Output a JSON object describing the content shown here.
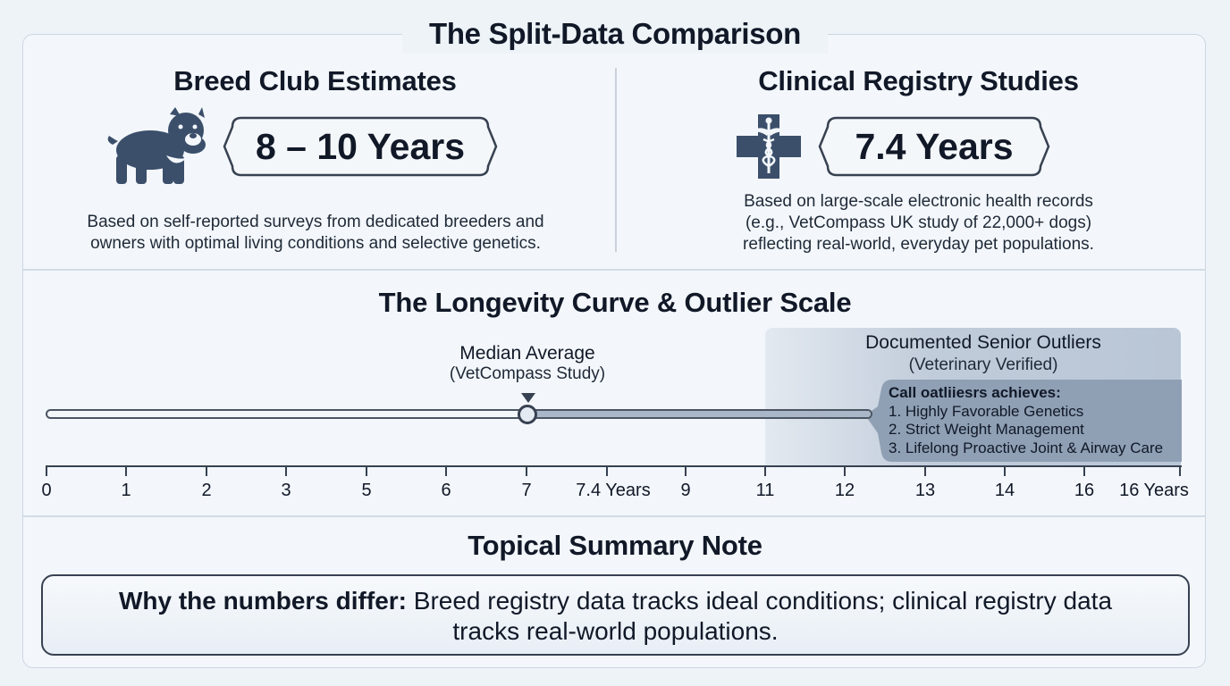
{
  "title": "The Split-Data Comparison",
  "left_panel": {
    "heading": "Breed Club Estimates",
    "icon": "bulldog-icon",
    "value": "8 – 10 Years",
    "description_line1": "Based on self-reported surveys from dedicated breeders and",
    "description_line2": "owners with optimal living conditions and selective genetics."
  },
  "right_panel": {
    "heading": "Clinical Registry Studies",
    "icon": "medical-cross-caduceus-icon",
    "value": "7.4 Years",
    "description_line1": "Based on large-scale electronic health records",
    "description_line2": "(e.g., VetCompass UK study of 22,000+ dogs)",
    "description_line3": "reflecting real-world, everyday pet populations."
  },
  "longevity": {
    "heading": "The Longevity Curve & Outlier Scale",
    "median_label": "Median Average",
    "median_sublabel": "(VetCompass Study)",
    "median_value": 7,
    "outlier_label": "Documented Senior Outliers",
    "outlier_sublabel": "(Veterinary Verified)",
    "outlier_start": 11,
    "callout_title": "Call oatliiesrs achieves:",
    "callout_items": [
      "1. Highly Favorable Genetics",
      "2. Strict Weight Management",
      "3. Lifelong Proactive Joint & Airway Care"
    ],
    "axis_ticks": [
      "0",
      "1",
      "2",
      "3",
      "5",
      "6",
      "7",
      "7.4 Years",
      "9",
      "11",
      "12",
      "13",
      "14",
      "16",
      "16 Years"
    ]
  },
  "summary": {
    "heading": "Topical Summary Note",
    "bold_lead": "Why the numbers differ:",
    "text_line1": " Breed registry data tracks ideal conditions; clinical registry data",
    "text_line2": "tracks real-world populations."
  },
  "colors": {
    "navy_icon": "#3b4f6b",
    "track_fill": "#a9b7c8",
    "outlier_panel": "#c4cfdc",
    "callout_panel": "#8fa0b5"
  }
}
